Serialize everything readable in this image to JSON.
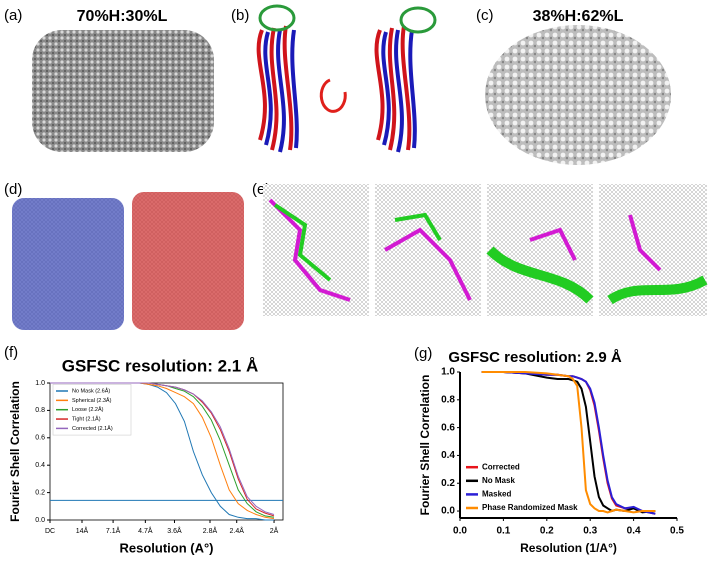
{
  "panels": {
    "a": {
      "label": "(a)",
      "title": "70%H:30%L"
    },
    "b": {
      "label": "(b)"
    },
    "c": {
      "label": "(c)",
      "title": "38%H:62%L"
    },
    "d": {
      "label": "(d)"
    },
    "e": {
      "label": "(e)"
    },
    "f": {
      "label": "(f)"
    },
    "g": {
      "label": "(g)"
    }
  },
  "chart_data": [
    {
      "type": "line",
      "title": "GSFSC resolution: 2.1 Å",
      "x_label": "Resolution (A°)",
      "y_label": "Fourier Shell Correlation",
      "x": [
        0,
        0.05,
        0.1,
        0.15,
        0.2,
        0.22,
        0.24,
        0.26,
        0.28,
        0.3,
        0.32,
        0.34,
        0.36,
        0.38,
        0.4,
        0.42,
        0.44,
        0.46,
        0.48,
        0.5
      ],
      "series": [
        {
          "name": "No Mask (2.6Å)",
          "color": "#1f77b4",
          "values": [
            1,
            1,
            1,
            1,
            1,
            0.99,
            0.97,
            0.93,
            0.85,
            0.72,
            0.5,
            0.33,
            0.2,
            0.1,
            0.04,
            0.02,
            0.01,
            0.01,
            0,
            0
          ]
        },
        {
          "name": "Spherical (2.3Å)",
          "color": "#ff7f0e",
          "values": [
            1,
            1,
            1,
            1,
            1,
            0.99,
            0.98,
            0.96,
            0.93,
            0.9,
            0.85,
            0.75,
            0.6,
            0.4,
            0.22,
            0.12,
            0.07,
            0.04,
            0.02,
            0.01
          ]
        },
        {
          "name": "Loose (2.2Å)",
          "color": "#2ca02c",
          "values": [
            1,
            1,
            1,
            1,
            1,
            1,
            0.99,
            0.98,
            0.96,
            0.94,
            0.9,
            0.83,
            0.73,
            0.58,
            0.4,
            0.22,
            0.12,
            0.06,
            0.03,
            0.02
          ]
        },
        {
          "name": "Tight (2.1Å)",
          "color": "#d62728",
          "values": [
            1,
            1,
            1,
            1,
            1,
            1,
            0.99,
            0.98,
            0.97,
            0.95,
            0.92,
            0.86,
            0.78,
            0.66,
            0.5,
            0.3,
            0.15,
            0.08,
            0.05,
            0.03
          ]
        },
        {
          "name": "Corrected (2.1Å)",
          "color": "#9467bd",
          "values": [
            1,
            1,
            1,
            1,
            1,
            1,
            0.99,
            0.98,
            0.97,
            0.95,
            0.92,
            0.87,
            0.79,
            0.68,
            0.52,
            0.32,
            0.17,
            0.1,
            0.06,
            0.04
          ]
        }
      ],
      "threshold": 0.143,
      "threshold_color": "#1f77b4",
      "xlim": [
        0,
        0.52
      ],
      "ylim": [
        0,
        1
      ],
      "xticks": [
        {
          "value": 0,
          "label": "DC"
        },
        {
          "value": 0.0714,
          "label": "14Å"
        },
        {
          "value": 0.1408,
          "label": "7.1Å"
        },
        {
          "value": 0.2128,
          "label": "4.7Å"
        },
        {
          "value": 0.2778,
          "label": "3.6Å"
        },
        {
          "value": 0.3571,
          "label": "2.8Å"
        },
        {
          "value": 0.4167,
          "label": "2.4Å"
        },
        {
          "value": 0.5,
          "label": "2Å"
        }
      ],
      "yticks": [
        {
          "value": 0,
          "label": "0.0"
        },
        0.2,
        0.4,
        0.6,
        0.8,
        {
          "value": 1,
          "label": "1.0"
        }
      ],
      "legend": "upper left"
    },
    {
      "type": "line",
      "title": "GSFSC resolution: 2.9 Å",
      "x_label": "Resolution (1/A°)",
      "y_label": "Fourier Shell Correlation",
      "x": [
        0.05,
        0.1,
        0.15,
        0.2,
        0.225,
        0.25,
        0.26,
        0.27,
        0.28,
        0.29,
        0.3,
        0.31,
        0.32,
        0.33,
        0.34,
        0.35,
        0.36,
        0.38,
        0.4,
        0.42,
        0.45
      ],
      "series": [
        {
          "name": "Corrected",
          "color": "#e8141b",
          "values": [
            1,
            1,
            0.99,
            0.98,
            0.98,
            0.97,
            0.97,
            0.96,
            0.95,
            0.93,
            0.87,
            0.76,
            0.58,
            0.38,
            0.2,
            0.09,
            0.04,
            0.02,
            0.02,
            0,
            -0.02
          ]
        },
        {
          "name": "No Mask",
          "color": "#000000",
          "values": [
            1,
            1,
            0.99,
            0.96,
            0.95,
            0.95,
            0.94,
            0.93,
            0.88,
            0.75,
            0.5,
            0.25,
            0.1,
            0.04,
            0.02,
            0,
            0.01,
            0,
            0.02,
            -0.01,
            0
          ]
        },
        {
          "name": "Masked",
          "color": "#2b1fd6",
          "values": [
            1,
            1,
            0.99,
            0.98,
            0.98,
            0.97,
            0.97,
            0.96,
            0.95,
            0.93,
            0.88,
            0.78,
            0.6,
            0.4,
            0.22,
            0.1,
            0.05,
            0.02,
            0.03,
            0,
            -0.02
          ]
        },
        {
          "name": "Phase Randomized Mask",
          "color": "#ff8c00",
          "values": [
            1,
            1,
            1,
            0.99,
            0.98,
            0.97,
            0.95,
            0.9,
            0.6,
            0.15,
            0.05,
            0.02,
            0,
            0,
            -0.01,
            0,
            0.01,
            0,
            -0.01,
            0,
            0
          ]
        }
      ],
      "xlim": [
        0,
        0.5
      ],
      "ylim": [
        -0.05,
        1
      ],
      "xticks": [
        {
          "value": 0,
          "label": "0.0"
        },
        0.1,
        0.2,
        0.3,
        0.4,
        0.5
      ],
      "yticks": [
        {
          "value": 0,
          "label": "0.0"
        },
        0.2,
        0.4,
        0.6,
        0.8,
        {
          "value": 1,
          "label": "1.0"
        }
      ],
      "legend": "lower left"
    }
  ]
}
